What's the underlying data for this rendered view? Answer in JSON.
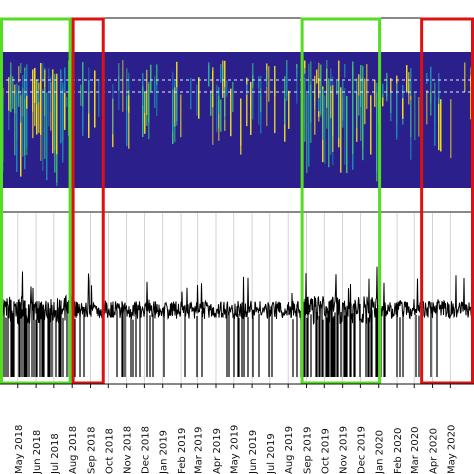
{
  "chart_data": [
    {
      "type": "heatmap",
      "title": "",
      "xlabel": "",
      "ylabel": "",
      "x_ticks": [
        "May 2018",
        "Jun 2018",
        "Jul 2018",
        "Aug 2018",
        "Sep 2018",
        "Oct 2018",
        "Nov 2018",
        "Dec 2018",
        "Jan 2019",
        "Feb 2019",
        "Mar 2019",
        "Apr 2019",
        "May 2019",
        "Jun 2019",
        "Jul 2019",
        "Aug 2019",
        "Sep 2019",
        "Oct 2019",
        "Nov 2019",
        "Dec 2019",
        "Jan 2020",
        "Feb 2020",
        "Mar 2020",
        "Apr 2020",
        "May 2020"
      ],
      "x_range": [
        "2018-04-01",
        "2020-06-10"
      ],
      "colormap": [
        "#2b1f8c",
        "#1a8fb5",
        "#3cc47a",
        "#f4e21b"
      ],
      "background": "#2b1f8c",
      "reference_lines": 2
    },
    {
      "type": "line",
      "title": "",
      "xlabel": "",
      "ylabel": "",
      "x_ticks": [
        "May 2018",
        "Jun 2018",
        "Jul 2018",
        "Aug 2018",
        "Sep 2018",
        "Oct 2018",
        "Nov 2018",
        "Dec 2018",
        "Jan 2019",
        "Feb 2019",
        "Mar 2019",
        "Apr 2019",
        "May 2019",
        "Jun 2019",
        "Jul 2019",
        "Aug 2019",
        "Sep 2019",
        "Oct 2019",
        "Nov 2019",
        "Dec 2019",
        "Jan 2020",
        "Feb 2020",
        "Mar 2020",
        "Apr 2020",
        "May 2020"
      ],
      "x_range": [
        "2018-04-01",
        "2020-06-10"
      ],
      "grid": "vertical",
      "line_color": "#000000"
    }
  ],
  "highlights": [
    {
      "kind": "green",
      "color": "#55dd22",
      "start": "2018-04-01",
      "end": "2018-07-31"
    },
    {
      "kind": "red",
      "color": "#dd1111",
      "start": "2018-07-31",
      "end": "2018-09-25"
    },
    {
      "kind": "green",
      "color": "#55dd22",
      "start": "2019-08-22",
      "end": "2020-01-05"
    },
    {
      "kind": "red",
      "color": "#dd1111",
      "start": "2020-03-11",
      "end": "2020-06-10"
    }
  ]
}
